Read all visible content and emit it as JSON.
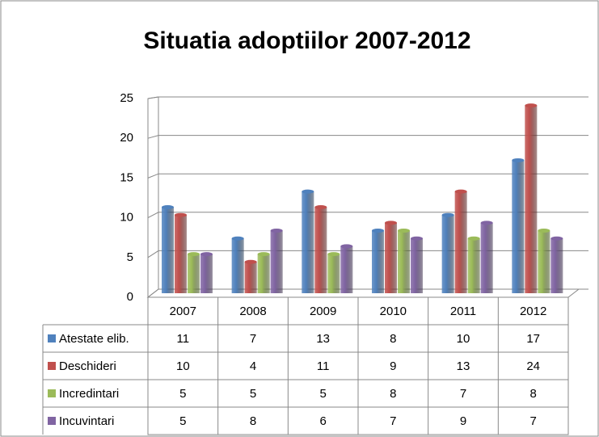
{
  "chart_data": {
    "type": "bar",
    "title": "Situatia adoptiilor 2007-2012",
    "categories": [
      "2007",
      "2008",
      "2009",
      "2010",
      "2011",
      "2012"
    ],
    "series": [
      {
        "name": "Atestate elib.",
        "color": "#4f81bd",
        "values": [
          11,
          7,
          13,
          8,
          10,
          17
        ]
      },
      {
        "name": "Deschideri",
        "color": "#c0504d",
        "values": [
          10,
          4,
          11,
          9,
          13,
          24
        ]
      },
      {
        "name": "Incredintari",
        "color": "#9bbb59",
        "values": [
          5,
          5,
          5,
          8,
          7,
          8
        ]
      },
      {
        "name": "Incuvintari",
        "color": "#8064a2",
        "values": [
          5,
          8,
          6,
          7,
          9,
          7
        ]
      }
    ],
    "ylim": [
      0,
      25
    ],
    "yticks": [
      0,
      5,
      10,
      15,
      20,
      25
    ],
    "grid": true
  }
}
